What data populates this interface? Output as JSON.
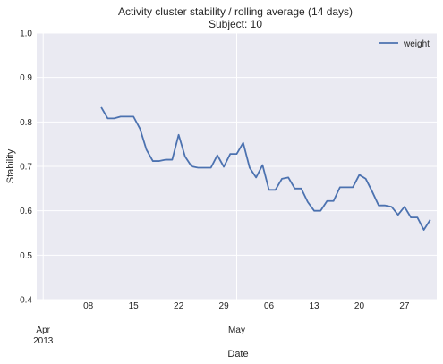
{
  "chart_data": {
    "type": "line",
    "title": "Activity cluster stability / rolling average (14 days)",
    "subtitle": "Subject: 10",
    "xlabel": "Date",
    "ylabel": "Stability",
    "ylim": [
      0.4,
      1.0
    ],
    "xlim": [
      "2013-03-31",
      "2013-06-01"
    ],
    "grid": true,
    "legend_position": "top-right",
    "yticks": [
      "0.4",
      "0.5",
      "0.6",
      "0.7",
      "0.8",
      "0.9",
      "1.0"
    ],
    "xticks": [
      {
        "date": "2013-04-01",
        "label": "Apr",
        "sublabel": "2013"
      },
      {
        "date": "2013-04-08",
        "label": "08"
      },
      {
        "date": "2013-04-15",
        "label": "15"
      },
      {
        "date": "2013-04-22",
        "label": "22"
      },
      {
        "date": "2013-04-29",
        "label": "29"
      },
      {
        "date": "2013-05-01",
        "label": "May"
      },
      {
        "date": "2013-05-06",
        "label": "06"
      },
      {
        "date": "2013-05-13",
        "label": "13"
      },
      {
        "date": "2013-05-20",
        "label": "20"
      },
      {
        "date": "2013-05-27",
        "label": "27"
      }
    ],
    "series": [
      {
        "name": "weight",
        "color": "#4c72b0",
        "points": [
          [
            "2013-04-10",
            0.833
          ],
          [
            "2013-04-11",
            0.808
          ],
          [
            "2013-04-12",
            0.808
          ],
          [
            "2013-04-13",
            0.812
          ],
          [
            "2013-04-14",
            0.812
          ],
          [
            "2013-04-15",
            0.812
          ],
          [
            "2013-04-16",
            0.785
          ],
          [
            "2013-04-17",
            0.738
          ],
          [
            "2013-04-18",
            0.712
          ],
          [
            "2013-04-19",
            0.712
          ],
          [
            "2013-04-20",
            0.715
          ],
          [
            "2013-04-21",
            0.715
          ],
          [
            "2013-04-22",
            0.771
          ],
          [
            "2013-04-23",
            0.722
          ],
          [
            "2013-04-24",
            0.7
          ],
          [
            "2013-04-25",
            0.697
          ],
          [
            "2013-04-26",
            0.697
          ],
          [
            "2013-04-27",
            0.697
          ],
          [
            "2013-04-28",
            0.725
          ],
          [
            "2013-04-29",
            0.699
          ],
          [
            "2013-04-30",
            0.728
          ],
          [
            "2013-05-01",
            0.728
          ],
          [
            "2013-05-02",
            0.753
          ],
          [
            "2013-05-03",
            0.697
          ],
          [
            "2013-05-04",
            0.675
          ],
          [
            "2013-05-05",
            0.703
          ],
          [
            "2013-05-06",
            0.647
          ],
          [
            "2013-05-07",
            0.647
          ],
          [
            "2013-05-08",
            0.672
          ],
          [
            "2013-05-09",
            0.675
          ],
          [
            "2013-05-10",
            0.65
          ],
          [
            "2013-05-11",
            0.65
          ],
          [
            "2013-05-12",
            0.62
          ],
          [
            "2013-05-13",
            0.6
          ],
          [
            "2013-05-14",
            0.6
          ],
          [
            "2013-05-15",
            0.622
          ],
          [
            "2013-05-16",
            0.622
          ],
          [
            "2013-05-17",
            0.653
          ],
          [
            "2013-05-18",
            0.653
          ],
          [
            "2013-05-19",
            0.653
          ],
          [
            "2013-05-20",
            0.681
          ],
          [
            "2013-05-21",
            0.672
          ],
          [
            "2013-05-22",
            0.643
          ],
          [
            "2013-05-23",
            0.612
          ],
          [
            "2013-05-24",
            0.612
          ],
          [
            "2013-05-25",
            0.609
          ],
          [
            "2013-05-26",
            0.591
          ],
          [
            "2013-05-27",
            0.609
          ],
          [
            "2013-05-28",
            0.585
          ],
          [
            "2013-05-29",
            0.585
          ],
          [
            "2013-05-30",
            0.557
          ],
          [
            "2013-05-31",
            0.58
          ]
        ]
      }
    ]
  }
}
